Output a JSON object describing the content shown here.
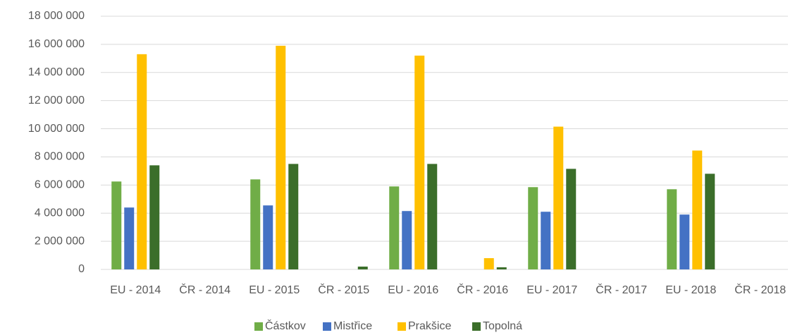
{
  "chart_data": {
    "type": "bar",
    "categories": [
      "EU - 2014",
      "ČR - 2014",
      "EU - 2015",
      "ČR - 2015",
      "EU - 2016",
      "ČR - 2016",
      "EU - 2017",
      "ČR - 2017",
      "EU - 2018",
      "ČR - 2018"
    ],
    "series": [
      {
        "name": "Částkov",
        "color": "#70ad47",
        "values": [
          6250000,
          0,
          6400000,
          0,
          5900000,
          0,
          5850000,
          0,
          5700000,
          0
        ]
      },
      {
        "name": "Mistřice",
        "color": "#4472c4",
        "values": [
          4400000,
          0,
          4550000,
          0,
          4150000,
          0,
          4100000,
          0,
          3900000,
          0
        ]
      },
      {
        "name": "Prakšice",
        "color": "#ffc000",
        "values": [
          15300000,
          0,
          15900000,
          0,
          15200000,
          800000,
          10150000,
          0,
          8450000,
          0
        ]
      },
      {
        "name": "Topolná",
        "color": "#3b6e2a",
        "values": [
          7400000,
          0,
          7500000,
          200000,
          7500000,
          150000,
          7150000,
          0,
          6800000,
          0
        ]
      }
    ],
    "ylim": [
      0,
      18000000
    ],
    "yticks": [
      0,
      {
        "value": 2000000,
        "label": "2 000 000"
      },
      {
        "value": 4000000,
        "label": "4 000 000"
      },
      {
        "value": 6000000,
        "label": "6 000 000"
      },
      {
        "value": 8000000,
        "label": "8 000 000"
      },
      {
        "value": 10000000,
        "label": "10 000 000"
      },
      {
        "value": 12000000,
        "label": "12 000 000"
      },
      {
        "value": 14000000,
        "label": "14 000 000"
      },
      {
        "value": 16000000,
        "label": "16 000 000"
      },
      {
        "value": 18000000,
        "label": "18 000 000"
      }
    ],
    "grid": true,
    "legend": "bottom"
  }
}
